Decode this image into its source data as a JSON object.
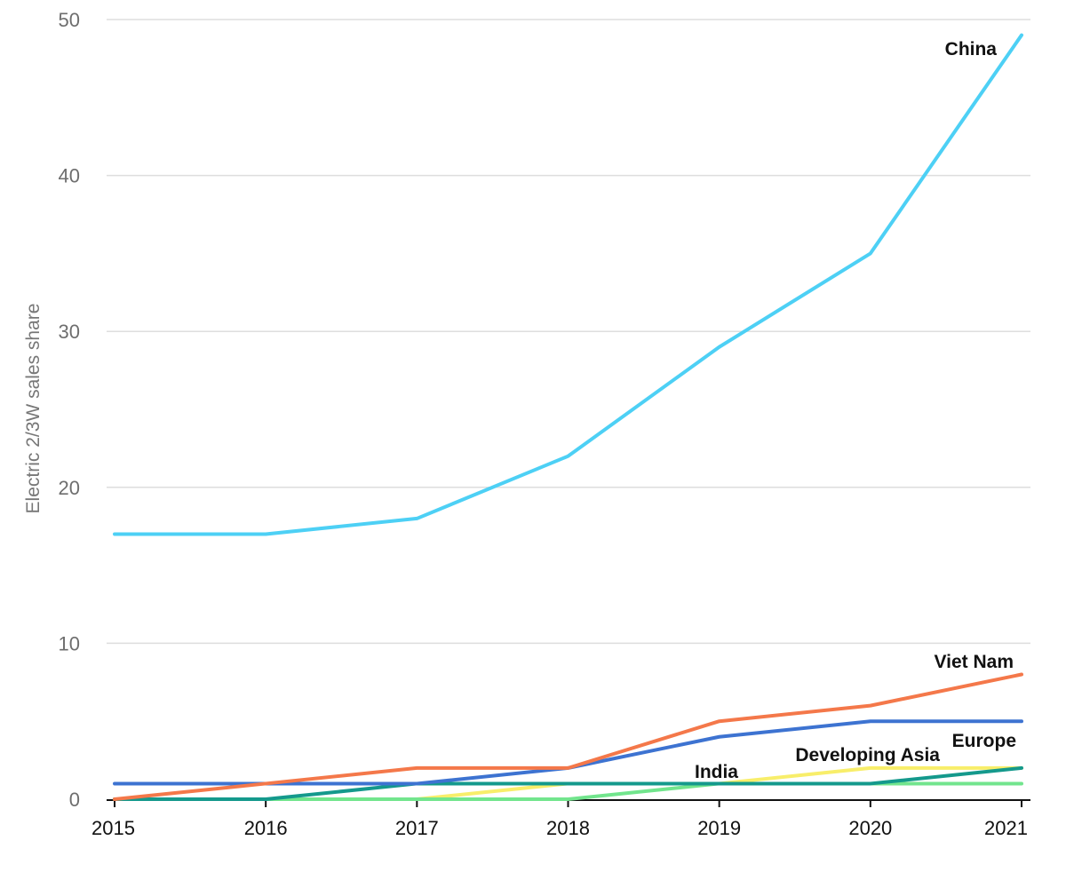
{
  "chart_data": {
    "type": "line",
    "title": "",
    "xlabel": "",
    "ylabel": "Electric 2/3W sales share",
    "x": [
      "2015",
      "2016",
      "2017",
      "2018",
      "2019",
      "2020",
      "2021"
    ],
    "ylim": [
      0,
      50
    ],
    "y_ticks": [
      "0",
      "10",
      "20",
      "30",
      "40",
      "50"
    ],
    "grid": true,
    "legend": "direct labels at line ends",
    "series": [
      {
        "name": "China",
        "color": "#4dd0f5",
        "values": [
          17,
          17,
          18,
          22,
          29,
          35,
          49
        ]
      },
      {
        "name": "Viet Nam",
        "color": "#f4784a",
        "values": [
          0,
          1,
          2,
          2,
          5,
          6,
          8
        ]
      },
      {
        "name": "",
        "color": "#3d73d1",
        "values": [
          1,
          1,
          1,
          2,
          4,
          5,
          5
        ]
      },
      {
        "name": "Europe",
        "color": "#14998c",
        "values": [
          0,
          0,
          1,
          1,
          1,
          1,
          2
        ]
      },
      {
        "name": "Developing Asia",
        "color": "#f8ee6a",
        "values": [
          0,
          0,
          0,
          1,
          1,
          2,
          2
        ]
      },
      {
        "name": "India",
        "color": "#72e58d",
        "values": [
          0,
          0,
          0,
          0,
          1,
          1,
          1
        ]
      }
    ]
  }
}
